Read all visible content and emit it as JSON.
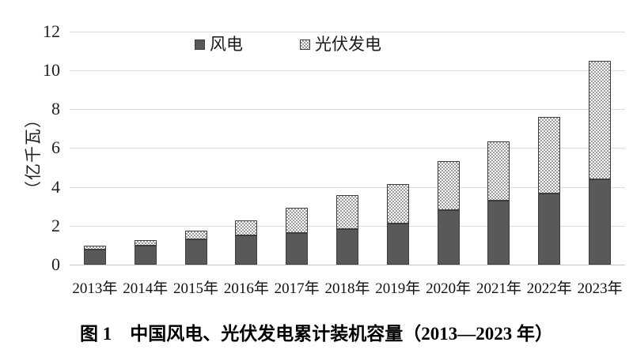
{
  "figure": {
    "caption": "图 1　中国风电、光伏发电累计装机容量（2013—2023 年）"
  },
  "chart_data": {
    "type": "bar",
    "stacked": true,
    "categories": [
      "2013年",
      "2014年",
      "2015年",
      "2016年",
      "2017年",
      "2018年",
      "2019年",
      "2020年",
      "2021年",
      "2022年",
      "2023年"
    ],
    "series": [
      {
        "name": "风电",
        "values": [
          0.77,
          0.96,
          1.29,
          1.49,
          1.64,
          1.84,
          2.1,
          2.81,
          3.28,
          3.65,
          4.41
        ]
      },
      {
        "name": "光伏发电",
        "values": [
          0.19,
          0.28,
          0.43,
          0.77,
          1.3,
          1.74,
          2.04,
          2.53,
          3.06,
          3.93,
          6.09
        ]
      }
    ],
    "totals": [
      0.96,
      1.24,
      1.72,
      2.26,
      2.94,
      3.58,
      4.14,
      5.34,
      6.34,
      7.58,
      10.5
    ],
    "xlabel": "",
    "ylabel": "（亿千瓦）",
    "ylim": [
      0,
      12
    ],
    "yticks": [
      0,
      2,
      4,
      6,
      8,
      10,
      12
    ],
    "grid": true,
    "legend_position": "top-center"
  },
  "colors": {
    "wind_fill": "#595959",
    "pv_pattern": "#9a9a9a",
    "pv_background": "#ffffff",
    "bar_border": "#3d3d3d",
    "gridline": "#dcdcdc",
    "axis_line": "#c4c4c4",
    "text": "#1a1a1a"
  }
}
